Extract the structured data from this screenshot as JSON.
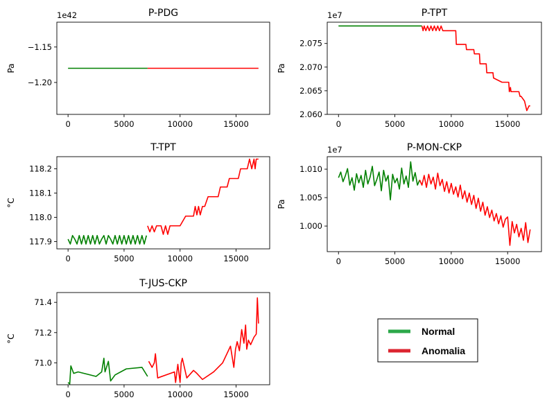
{
  "colors": {
    "normal": "#008000",
    "anomaly": "#ff0000",
    "legend_normal": "#2ca84a",
    "legend_anomaly": "#dc2530"
  },
  "legend": {
    "normal_label": "Normal",
    "anomaly_label": "Anomalia"
  },
  "chart_data": [
    {
      "type": "line",
      "title": "P-PDG",
      "ylabel": "Pa",
      "offset_text": "1e42",
      "xlim": [
        -1000,
        18000
      ],
      "ylim": [
        -1.245,
        -1.115
      ],
      "xticks": [
        0,
        5000,
        10000,
        15000
      ],
      "xtick_labels": [
        "0",
        "5000",
        "10000",
        "15000"
      ],
      "yticks": [
        -1.15,
        -1.2
      ],
      "ytick_labels": [
        "−1.15",
        "−1.20"
      ],
      "series": [
        {
          "role": "normal",
          "x": [
            0,
            7100
          ],
          "y": [
            -1.18,
            -1.18
          ]
        },
        {
          "role": "anomaly",
          "x": [
            7100,
            17000
          ],
          "y": [
            -1.18,
            -1.18
          ]
        }
      ]
    },
    {
      "type": "line",
      "title": "P-TPT",
      "ylabel": "Pa",
      "offset_text": "1e7",
      "xlim": [
        -1000,
        18000
      ],
      "ylim": [
        2.06,
        2.0795
      ],
      "xticks": [
        0,
        5000,
        10000,
        15000
      ],
      "xtick_labels": [
        "0",
        "5000",
        "10000",
        "15000"
      ],
      "yticks": [
        2.06,
        2.065,
        2.07,
        2.075
      ],
      "ytick_labels": [
        "2.060",
        "2.065",
        "2.070",
        "2.075"
      ],
      "series": [
        {
          "role": "normal",
          "x": [
            0,
            7400
          ],
          "y": [
            2.0787,
            2.0787
          ]
        },
        {
          "role": "anomaly",
          "x": [
            7400,
            7500,
            7600,
            7750,
            7900,
            8050,
            8200,
            8350,
            8500,
            8650,
            8800,
            8950,
            9100,
            9250,
            9500,
            10400,
            10450,
            11300,
            11350,
            12000,
            12050,
            12500,
            12550,
            13100,
            13150,
            13700,
            13750,
            14500,
            14550,
            15100,
            15150,
            15250,
            15300,
            16000,
            16100,
            16200,
            16500,
            16700,
            16900,
            17000
          ],
          "y": [
            2.0787,
            2.0777,
            2.0787,
            2.0777,
            2.0787,
            2.0777,
            2.0787,
            2.0777,
            2.0787,
            2.0777,
            2.0787,
            2.0777,
            2.0787,
            2.0777,
            2.0777,
            2.0777,
            2.0748,
            2.0748,
            2.0737,
            2.0737,
            2.0728,
            2.0728,
            2.0707,
            2.0707,
            2.0688,
            2.0688,
            2.0677,
            2.0668,
            2.0668,
            2.0668,
            2.0648,
            2.0657,
            2.0648,
            2.0648,
            2.0638,
            2.0638,
            2.0628,
            2.0608,
            2.0618,
            2.0618
          ]
        }
      ]
    },
    {
      "type": "line",
      "title": "T-TPT",
      "ylabel": "°C",
      "offset_text": "",
      "xlim": [
        -1000,
        18000
      ],
      "ylim": [
        117.87,
        118.25
      ],
      "xticks": [
        0,
        5000,
        10000,
        15000
      ],
      "xtick_labels": [
        "0",
        "5000",
        "10000",
        "15000"
      ],
      "yticks": [
        117.9,
        118.0,
        118.1,
        118.2
      ],
      "ytick_labels": [
        "117.9",
        "118.0",
        "118.1",
        "118.2"
      ],
      "series": [
        {
          "role": "normal",
          "x": [
            0,
            200,
            400,
            600,
            800,
            1000,
            1200,
            1400,
            1600,
            1800,
            2000,
            2200,
            2400,
            2600,
            2800,
            3000,
            3200,
            3400,
            3600,
            3800,
            4000,
            4200,
            4400,
            4600,
            4800,
            5000,
            5200,
            5400,
            5600,
            5800,
            6000,
            6200,
            6400,
            6600,
            6800,
            7000
          ],
          "y": [
            117.91,
            117.89,
            117.925,
            117.91,
            117.89,
            117.925,
            117.89,
            117.925,
            117.89,
            117.925,
            117.89,
            117.925,
            117.89,
            117.925,
            117.89,
            117.91,
            117.925,
            117.89,
            117.925,
            117.91,
            117.89,
            117.925,
            117.89,
            117.925,
            117.89,
            117.925,
            117.89,
            117.925,
            117.89,
            117.925,
            117.89,
            117.925,
            117.89,
            117.925,
            117.89,
            117.925
          ]
        },
        {
          "role": "anomaly",
          "x": [
            7100,
            7300,
            7500,
            7700,
            7900,
            8100,
            8300,
            8500,
            8700,
            8900,
            9100,
            10000,
            10500,
            11200,
            11350,
            11500,
            11650,
            11800,
            12000,
            12200,
            12500,
            13400,
            13600,
            14200,
            14400,
            15200,
            15400,
            16000,
            16200,
            16400,
            16600,
            16700,
            16800,
            17000
          ],
          "y": [
            117.965,
            117.94,
            117.965,
            117.94,
            117.965,
            117.965,
            117.965,
            117.93,
            117.965,
            117.93,
            117.965,
            117.965,
            118.005,
            118.005,
            118.045,
            118.01,
            118.045,
            118.01,
            118.045,
            118.045,
            118.085,
            118.085,
            118.125,
            118.125,
            118.16,
            118.16,
            118.2,
            118.2,
            118.24,
            118.2,
            118.24,
            118.2,
            118.24,
            118.24
          ]
        }
      ]
    },
    {
      "type": "line",
      "title": "P-MON-CKP",
      "ylabel": "Pa",
      "offset_text": "1e7",
      "xlim": [
        -1000,
        18000
      ],
      "ylim": [
        0.9955,
        1.0122
      ],
      "xticks": [
        0,
        5000,
        10000,
        15000
      ],
      "xtick_labels": [
        "0",
        "5000",
        "10000",
        "15000"
      ],
      "yticks": [
        1.0,
        1.005,
        1.01
      ],
      "ytick_labels": [
        "1.000",
        "1.005",
        "1.010"
      ],
      "series": [
        {
          "role": "normal",
          "x": [
            0,
            200,
            400,
            600,
            800,
            1000,
            1200,
            1400,
            1600,
            1800,
            2000,
            2200,
            2400,
            2600,
            2800,
            3000,
            3200,
            3400,
            3600,
            3800,
            4000,
            4200,
            4400,
            4600,
            4800,
            5000,
            5200,
            5400,
            5600,
            5800,
            6000,
            6200,
            6400,
            6600,
            6800,
            7000,
            7200
          ],
          "y": [
            1.0085,
            1.0095,
            1.0078,
            1.0088,
            1.0101,
            1.0072,
            1.0085,
            1.0063,
            1.0092,
            1.0076,
            1.0089,
            1.0068,
            1.0098,
            1.0074,
            1.0086,
            1.0105,
            1.0071,
            1.0082,
            1.0095,
            1.0062,
            1.0098,
            1.0079,
            1.0089,
            1.0046,
            1.0091,
            1.0076,
            1.0084,
            1.0065,
            1.0102,
            1.0074,
            1.0088,
            1.0068,
            1.0113,
            1.0079,
            1.0094,
            1.0072,
            1.0081
          ]
        },
        {
          "role": "anomaly",
          "x": [
            7200,
            7400,
            7600,
            7800,
            8000,
            8200,
            8400,
            8600,
            8800,
            9000,
            9200,
            9400,
            9600,
            9800,
            10000,
            10200,
            10400,
            10600,
            10800,
            11000,
            11200,
            11400,
            11600,
            11800,
            12000,
            12200,
            12400,
            12600,
            12800,
            13000,
            13200,
            13400,
            13600,
            13800,
            14000,
            14200,
            14400,
            14600,
            14800,
            15000,
            15200,
            15400,
            15600,
            15800,
            16000,
            16200,
            16400,
            16600,
            16800,
            17000
          ],
          "y": [
            1.0081,
            1.0072,
            1.0089,
            1.0068,
            1.0091,
            1.0074,
            1.0086,
            1.0065,
            1.0093,
            1.0071,
            1.0082,
            1.0061,
            1.0078,
            1.0058,
            1.0075,
            1.0056,
            1.0069,
            1.0051,
            1.0072,
            1.0048,
            1.0062,
            1.0042,
            1.0058,
            1.0038,
            1.0054,
            1.0031,
            1.0049,
            1.0026,
            1.0042,
            1.0019,
            1.0034,
            1.0015,
            1.0028,
            1.0009,
            1.0022,
            1.0004,
            1.0018,
            0.9998,
            1.0012,
            1.0016,
            0.9966,
            1.0008,
            0.9988,
            1.0003,
            0.9981,
            0.9996,
            0.9975,
            1.0006,
            0.9971,
            0.9994
          ]
        }
      ]
    },
    {
      "type": "line",
      "title": "T-JUS-CKP",
      "ylabel": "°C",
      "offset_text": "",
      "xlim": [
        -1000,
        18000
      ],
      "ylim": [
        70.855,
        71.465
      ],
      "xticks": [
        0,
        5000,
        10000,
        15000
      ],
      "xtick_labels": [
        "0",
        "5000",
        "10000",
        "15000"
      ],
      "yticks": [
        71.0,
        71.2,
        71.4
      ],
      "ytick_labels": [
        "71.0",
        "71.2",
        "71.4"
      ],
      "series": [
        {
          "role": "normal",
          "x": [
            0,
            150,
            250,
            500,
            900,
            2500,
            3000,
            3200,
            3300,
            3600,
            3800,
            4200,
            5200,
            6600,
            7100
          ],
          "y": [
            70.87,
            70.86,
            70.98,
            70.93,
            70.94,
            70.91,
            70.94,
            71.03,
            70.94,
            71.01,
            70.88,
            70.92,
            70.96,
            70.97,
            70.91
          ]
        },
        {
          "role": "anomaly",
          "x": [
            7200,
            7500,
            7700,
            7800,
            8000,
            9500,
            9600,
            9800,
            10000,
            10100,
            10200,
            10600,
            11200,
            11500,
            12000,
            13000,
            13800,
            14500,
            14800,
            14950,
            15100,
            15300,
            15500,
            15700,
            15850,
            15950,
            16100,
            16300,
            16600,
            16800,
            16900,
            17000
          ],
          "y": [
            71.01,
            70.97,
            71.0,
            71.06,
            70.9,
            70.94,
            70.87,
            70.99,
            70.87,
            71.0,
            71.03,
            70.9,
            70.95,
            70.93,
            70.89,
            70.94,
            71.0,
            71.11,
            70.97,
            71.09,
            71.14,
            71.08,
            71.22,
            71.13,
            71.25,
            71.09,
            71.15,
            71.12,
            71.17,
            71.19,
            71.43,
            71.26
          ]
        }
      ]
    }
  ]
}
